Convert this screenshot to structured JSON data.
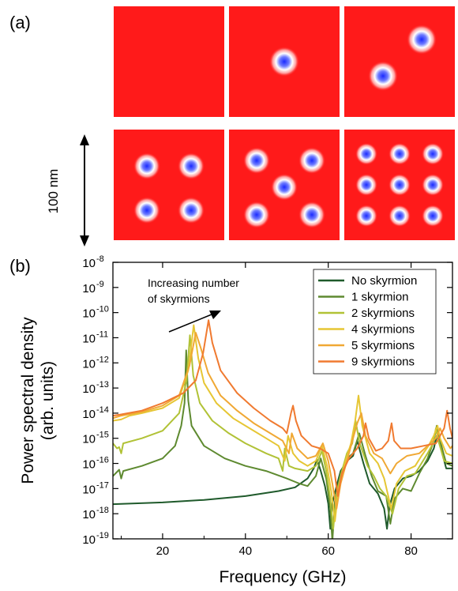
{
  "panel_a": {
    "label": "(a)",
    "scale_label": "100 nm",
    "colors": {
      "background": "#ff1a1a",
      "core": "#1a2aff"
    },
    "snapshots": [
      {
        "skyrmions": []
      },
      {
        "skyrmions": [
          [
            0.5,
            0.5
          ]
        ]
      },
      {
        "skyrmions": [
          [
            0.7,
            0.3
          ],
          [
            0.35,
            0.63
          ]
        ]
      },
      {
        "skyrmions": [
          [
            0.3,
            0.33
          ],
          [
            0.7,
            0.33
          ],
          [
            0.3,
            0.73
          ],
          [
            0.7,
            0.73
          ]
        ]
      },
      {
        "skyrmions": [
          [
            0.25,
            0.28
          ],
          [
            0.75,
            0.28
          ],
          [
            0.5,
            0.52
          ],
          [
            0.25,
            0.77
          ],
          [
            0.75,
            0.77
          ]
        ]
      },
      {
        "skyrmions": [
          [
            0.2,
            0.22
          ],
          [
            0.5,
            0.22
          ],
          [
            0.8,
            0.22
          ],
          [
            0.2,
            0.5
          ],
          [
            0.5,
            0.5
          ],
          [
            0.8,
            0.5
          ],
          [
            0.2,
            0.78
          ],
          [
            0.5,
            0.78
          ],
          [
            0.8,
            0.78
          ]
        ]
      }
    ]
  },
  "panel_b": {
    "label": "(b)"
  },
  "chart_data": {
    "type": "line",
    "xlabel": "Frequency (GHz)",
    "ylabel_line1": "Power spectral density",
    "ylabel_line2": "(arb. units)",
    "xlim": [
      8,
      90
    ],
    "ylim_exp": [
      -19,
      -8
    ],
    "yscale": "log",
    "xticks": [
      20,
      40,
      60,
      80
    ],
    "yticks": [
      {
        "exp": -8,
        "label_base": "10",
        "label_exp": "-8"
      },
      {
        "exp": -9,
        "label_base": "10",
        "label_exp": "-9"
      },
      {
        "exp": -10,
        "label_base": "10",
        "label_exp": "-10"
      },
      {
        "exp": -11,
        "label_base": "10",
        "label_exp": "-11"
      },
      {
        "exp": -12,
        "label_base": "10",
        "label_exp": "-12"
      },
      {
        "exp": -13,
        "label_base": "10",
        "label_exp": "-13"
      },
      {
        "exp": -14,
        "label_base": "10",
        "label_exp": "-14"
      },
      {
        "exp": -15,
        "label_base": "10",
        "label_exp": "-15"
      },
      {
        "exp": -16,
        "label_base": "10",
        "label_exp": "-16"
      },
      {
        "exp": -17,
        "label_base": "10",
        "label_exp": "-17"
      },
      {
        "exp": -18,
        "label_base": "10",
        "label_exp": "-18"
      },
      {
        "exp": -19,
        "label_base": "10",
        "label_exp": "-19"
      }
    ],
    "legend_position": "top-right",
    "annotation": {
      "line1": "Increasing number",
      "line2": "of skyrmions"
    },
    "series": [
      {
        "name": "No skyrmion",
        "color": "#1f5a2b",
        "points": [
          [
            8,
            -17.62
          ],
          [
            20,
            -17.55
          ],
          [
            30,
            -17.45
          ],
          [
            40,
            -17.3
          ],
          [
            48,
            -17.1
          ],
          [
            52,
            -16.95
          ],
          [
            55,
            -16.6
          ],
          [
            56.5,
            -16.2
          ],
          [
            57.3,
            -15.85
          ],
          [
            58.2,
            -16.3
          ],
          [
            59.2,
            -16.9
          ],
          [
            60,
            -17.6
          ],
          [
            60.5,
            -18.6
          ],
          [
            61,
            -17.6
          ],
          [
            62,
            -16.9
          ],
          [
            63,
            -16.3
          ],
          [
            64.5,
            -15.9
          ],
          [
            66,
            -15.7
          ],
          [
            67,
            -15.1
          ],
          [
            68.5,
            -16.0
          ],
          [
            70,
            -16.8
          ],
          [
            72,
            -17.2
          ],
          [
            73.5,
            -17.8
          ],
          [
            74.2,
            -18.6
          ],
          [
            74.8,
            -17.7
          ],
          [
            76,
            -17.0
          ],
          [
            78,
            -16.6
          ],
          [
            80,
            -16.5
          ],
          [
            82,
            -16.3
          ],
          [
            84,
            -15.9
          ],
          [
            85.5,
            -15.4
          ],
          [
            86.2,
            -14.9
          ],
          [
            87.2,
            -15.4
          ],
          [
            88.5,
            -16.2
          ],
          [
            90,
            -16.2
          ]
        ]
      },
      {
        "name": "1 skyrmion",
        "color": "#5e8a30",
        "points": [
          [
            8,
            -16.5
          ],
          [
            9.5,
            -16.25
          ],
          [
            10,
            -16.6
          ],
          [
            10.5,
            -16.3
          ],
          [
            15,
            -16.1
          ],
          [
            20,
            -15.8
          ],
          [
            23,
            -15.3
          ],
          [
            24.5,
            -14.5
          ],
          [
            25.3,
            -13.6
          ],
          [
            25.7,
            -11.5
          ],
          [
            26.2,
            -13.5
          ],
          [
            27,
            -14.5
          ],
          [
            30,
            -15.3
          ],
          [
            35,
            -15.8
          ],
          [
            40,
            -16.1
          ],
          [
            45,
            -16.3
          ],
          [
            50,
            -16.6
          ],
          [
            53,
            -16.8
          ],
          [
            55,
            -16.9
          ],
          [
            57,
            -16.5
          ],
          [
            58.2,
            -15.8
          ],
          [
            59.5,
            -16.6
          ],
          [
            60.5,
            -17.8
          ],
          [
            61,
            -19.1
          ],
          [
            61.6,
            -17.5
          ],
          [
            63,
            -16.4
          ],
          [
            64.5,
            -15.8
          ],
          [
            66,
            -15.6
          ],
          [
            67.5,
            -14.8
          ],
          [
            69,
            -15.7
          ],
          [
            70.5,
            -16.5
          ],
          [
            72,
            -17.1
          ],
          [
            74,
            -17.3
          ],
          [
            75,
            -18.4
          ],
          [
            76,
            -17.4
          ],
          [
            78,
            -17.0
          ],
          [
            80,
            -17.1
          ],
          [
            82,
            -16.4
          ],
          [
            84,
            -15.8
          ],
          [
            85.5,
            -15.1
          ],
          [
            86.2,
            -14.5
          ],
          [
            87,
            -15.1
          ],
          [
            88.5,
            -16.0
          ],
          [
            90,
            -16.1
          ]
        ]
      },
      {
        "name": "2 skyrmions",
        "color": "#b1c236",
        "points": [
          [
            8,
            -15.2
          ],
          [
            9,
            -15.4
          ],
          [
            9.5,
            -15.35
          ],
          [
            10,
            -15.6
          ],
          [
            10.5,
            -15.2
          ],
          [
            15,
            -15.0
          ],
          [
            20,
            -14.7
          ],
          [
            24,
            -14.0
          ],
          [
            25.8,
            -12.7
          ],
          [
            26.6,
            -10.9
          ],
          [
            27.4,
            -12.5
          ],
          [
            29,
            -13.6
          ],
          [
            32,
            -14.3
          ],
          [
            36,
            -14.8
          ],
          [
            40,
            -15.2
          ],
          [
            45,
            -15.6
          ],
          [
            48,
            -15.8
          ],
          [
            49,
            -16.3
          ],
          [
            49.5,
            -15.4
          ],
          [
            50.5,
            -16.1
          ],
          [
            52,
            -16.2
          ],
          [
            55,
            -16.3
          ],
          [
            57,
            -16.1
          ],
          [
            58.5,
            -15.5
          ],
          [
            59.5,
            -16.3
          ],
          [
            60.5,
            -17.4
          ],
          [
            61.2,
            -18.6
          ],
          [
            62,
            -17.2
          ],
          [
            63.3,
            -16.3
          ],
          [
            64.5,
            -15.6
          ],
          [
            65.8,
            -15.2
          ],
          [
            66.6,
            -14.3
          ],
          [
            67.6,
            -15.2
          ],
          [
            69.5,
            -16.1
          ],
          [
            71,
            -16.5
          ],
          [
            72.5,
            -17.0
          ],
          [
            74,
            -17.3
          ],
          [
            75.5,
            -18.0
          ],
          [
            77,
            -17.0
          ],
          [
            79,
            -16.5
          ],
          [
            81,
            -16.4
          ],
          [
            82.5,
            -16.0
          ],
          [
            84,
            -15.6
          ],
          [
            85.3,
            -15.2
          ],
          [
            86,
            -14.6
          ],
          [
            86.6,
            -15.1
          ],
          [
            88,
            -15.9
          ],
          [
            90,
            -16.0
          ]
        ]
      },
      {
        "name": "4 skyrmions",
        "color": "#e6c634",
        "points": [
          [
            8,
            -14.3
          ],
          [
            10,
            -14.25
          ],
          [
            12,
            -14.1
          ],
          [
            15,
            -14.0
          ],
          [
            20,
            -13.8
          ],
          [
            24,
            -13.4
          ],
          [
            26.2,
            -12.3
          ],
          [
            27.5,
            -10.5
          ],
          [
            28.6,
            -11.8
          ],
          [
            30,
            -12.8
          ],
          [
            33,
            -13.6
          ],
          [
            37,
            -14.2
          ],
          [
            41,
            -14.6
          ],
          [
            45,
            -15.0
          ],
          [
            48,
            -15.3
          ],
          [
            49.5,
            -15.9
          ],
          [
            50.3,
            -14.9
          ],
          [
            51.5,
            -15.6
          ],
          [
            53,
            -15.9
          ],
          [
            55,
            -16.1
          ],
          [
            57,
            -15.9
          ],
          [
            58.5,
            -15.3
          ],
          [
            59.7,
            -16.1
          ],
          [
            60.8,
            -17.2
          ],
          [
            61.6,
            -18.3
          ],
          [
            62.5,
            -17.0
          ],
          [
            64,
            -16.0
          ],
          [
            65.5,
            -15.2
          ],
          [
            66.5,
            -14.3
          ],
          [
            67.3,
            -13.3
          ],
          [
            68.2,
            -14.5
          ],
          [
            70,
            -15.6
          ],
          [
            72,
            -16.0
          ],
          [
            73.5,
            -16.6
          ],
          [
            75.2,
            -17.8
          ],
          [
            76.5,
            -16.8
          ],
          [
            78.5,
            -16.3
          ],
          [
            81,
            -16.1
          ],
          [
            82.5,
            -15.7
          ],
          [
            84.2,
            -15.3
          ],
          [
            85.5,
            -14.9
          ],
          [
            86.4,
            -14.5
          ],
          [
            87,
            -15.0
          ],
          [
            88.5,
            -15.6
          ],
          [
            90,
            -15.7
          ]
        ]
      },
      {
        "name": "5 skyrmions",
        "color": "#f0a834",
        "points": [
          [
            8,
            -14.2
          ],
          [
            10,
            -14.1
          ],
          [
            15,
            -13.95
          ],
          [
            20,
            -13.7
          ],
          [
            24,
            -13.3
          ],
          [
            26.5,
            -12.1
          ],
          [
            28,
            -10.8
          ],
          [
            29.2,
            -11.4
          ],
          [
            31,
            -12.4
          ],
          [
            34,
            -13.3
          ],
          [
            38,
            -13.9
          ],
          [
            42,
            -14.4
          ],
          [
            46,
            -14.8
          ],
          [
            49,
            -15.1
          ],
          [
            50.5,
            -15.6
          ],
          [
            51.2,
            -14.8
          ],
          [
            52.5,
            -15.4
          ],
          [
            55,
            -15.8
          ],
          [
            57,
            -15.7
          ],
          [
            58.7,
            -15.2
          ],
          [
            60,
            -15.9
          ],
          [
            61,
            -16.8
          ],
          [
            62,
            -17.8
          ],
          [
            63,
            -16.8
          ],
          [
            64.5,
            -15.9
          ],
          [
            66,
            -15.0
          ],
          [
            67,
            -14.4
          ],
          [
            68,
            -14.0
          ],
          [
            69,
            -14.9
          ],
          [
            71,
            -15.6
          ],
          [
            73,
            -15.8
          ],
          [
            75,
            -16.4
          ],
          [
            76.5,
            -16.0
          ],
          [
            79,
            -15.7
          ],
          [
            82,
            -15.6
          ],
          [
            84,
            -15.3
          ],
          [
            86,
            -15.0
          ],
          [
            87,
            -14.6
          ],
          [
            88,
            -15.0
          ],
          [
            89.5,
            -15.4
          ],
          [
            90,
            -15.3
          ]
        ]
      },
      {
        "name": "9 skyrmions",
        "color": "#f07a30",
        "points": [
          [
            8,
            -14.1
          ],
          [
            10,
            -14.05
          ],
          [
            15,
            -13.9
          ],
          [
            20,
            -13.6
          ],
          [
            25,
            -13.2
          ],
          [
            28,
            -12.7
          ],
          [
            29.8,
            -11.6
          ],
          [
            31.1,
            -10.3
          ],
          [
            32,
            -11.2
          ],
          [
            34,
            -12.3
          ],
          [
            38,
            -13.2
          ],
          [
            42,
            -13.8
          ],
          [
            46,
            -14.3
          ],
          [
            49,
            -14.6
          ],
          [
            50,
            -14.8
          ],
          [
            51,
            -14.0
          ],
          [
            51.5,
            -13.7
          ],
          [
            52.2,
            -14.3
          ],
          [
            53.5,
            -14.9
          ],
          [
            56,
            -15.3
          ],
          [
            58,
            -15.4
          ],
          [
            60,
            -15.6
          ],
          [
            61.5,
            -16.3
          ],
          [
            62.3,
            -17.3
          ],
          [
            63.3,
            -16.4
          ],
          [
            65,
            -15.8
          ],
          [
            67,
            -15.4
          ],
          [
            68.5,
            -14.9
          ],
          [
            69,
            -14.4
          ],
          [
            69.8,
            -15.0
          ],
          [
            71.5,
            -15.5
          ],
          [
            73,
            -15.4
          ],
          [
            74.5,
            -15.1
          ],
          [
            75.3,
            -14.4
          ],
          [
            75.9,
            -15.1
          ],
          [
            77.5,
            -15.4
          ],
          [
            80,
            -15.4
          ],
          [
            83,
            -15.3
          ],
          [
            86,
            -15.2
          ],
          [
            88,
            -14.6
          ],
          [
            88.7,
            -13.9
          ],
          [
            89.4,
            -14.6
          ],
          [
            90,
            -15.0
          ]
        ]
      }
    ]
  }
}
